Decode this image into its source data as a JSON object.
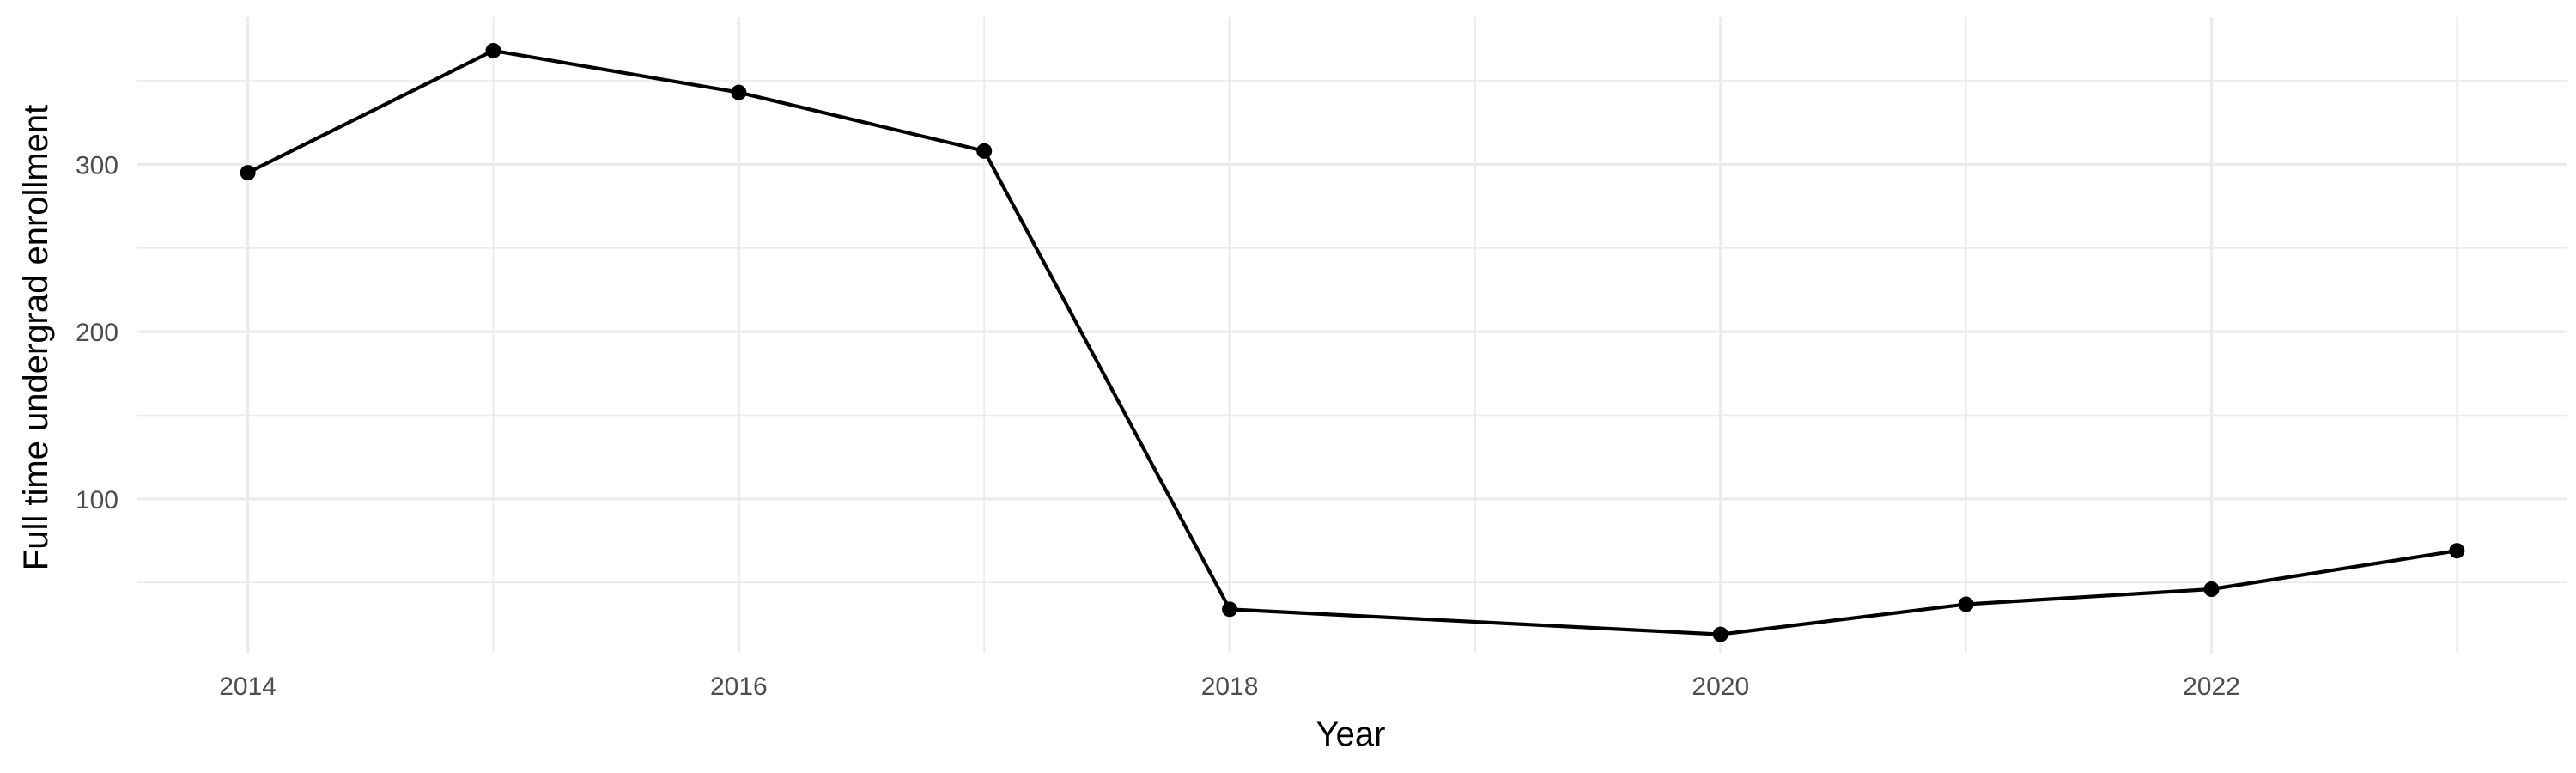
{
  "chart_data": {
    "type": "line",
    "xlabel": "Year",
    "ylabel": "Full time undergrad enrollment",
    "xlim": [
      2013.55,
      2023.45
    ],
    "ylim": [
      8,
      388
    ],
    "x_ticks": [
      2014,
      2016,
      2018,
      2020,
      2022
    ],
    "x_tick_labels": [
      "2014",
      "2016",
      "2018",
      "2020",
      "2022"
    ],
    "x_minor_ticks": [
      2015,
      2017,
      2019,
      2021,
      2023
    ],
    "y_ticks": [
      100,
      200,
      300
    ],
    "y_tick_labels": [
      "100",
      "200",
      "300"
    ],
    "y_minor_ticks": [
      50,
      150,
      250,
      350
    ],
    "grid": true,
    "legend": "none",
    "color": "#000000",
    "series": [
      {
        "x": [
          2014,
          2015,
          2016,
          2017,
          2018,
          2020,
          2021,
          2022,
          2023
        ],
        "values": [
          295,
          368,
          343,
          308,
          34,
          19,
          37,
          46,
          69
        ]
      }
    ]
  }
}
